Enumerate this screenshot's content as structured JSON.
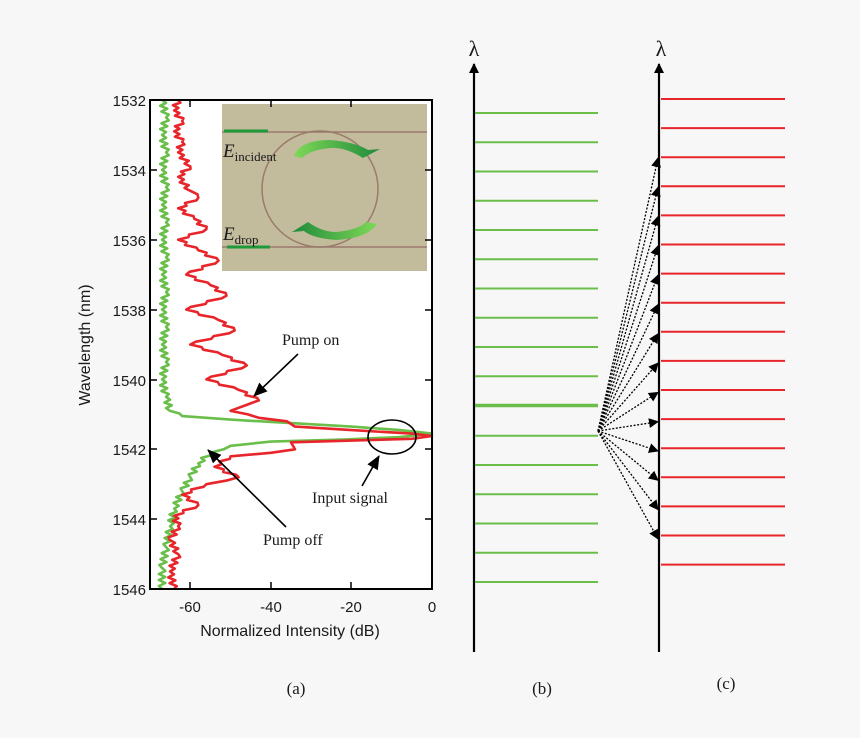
{
  "figure": {
    "background": "#f7f7f7",
    "panel_labels": {
      "a": "(a)",
      "b": "(b)",
      "c": "(c)"
    }
  },
  "panel_a": {
    "xlabel": "Normalized Intensity (dB)",
    "ylabel": "Wavelength (nm)",
    "xticks": [
      "-60",
      "-40",
      "-20",
      "0"
    ],
    "yticks": [
      "1532",
      "1534",
      "1536",
      "1538",
      "1540",
      "1542",
      "1544",
      "1546"
    ],
    "annotations": {
      "pump_on": "Pump on",
      "pump_off": "Pump off",
      "input_signal": "Input signal"
    },
    "inset": {
      "label_incident_main": "E",
      "label_incident_sub": "incident",
      "label_drop_main": "E",
      "label_drop_sub": "drop",
      "background": "#c2bb9c"
    }
  },
  "panel_b": {
    "axis_symbol": "λ",
    "line_color": "#6abf4b"
  },
  "panel_c": {
    "axis_symbol": "λ",
    "line_color": "#e8252a"
  },
  "colors": {
    "pump_off": "#6abf4b",
    "pump_on": "#e8252a",
    "axis": "#000000"
  },
  "chart_data": [
    {
      "type": "line",
      "title": "(a)",
      "xlabel": "Normalized Intensity (dB)",
      "ylabel": "Wavelength (nm)",
      "xlim": [
        -70,
        0
      ],
      "ylim": [
        1546,
        1532
      ],
      "yaxis_inverted": true,
      "xticks": [
        -60,
        -40,
        -20,
        0
      ],
      "yticks": [
        1532,
        1534,
        1536,
        1538,
        1540,
        1542,
        1544,
        1546
      ],
      "grid": false,
      "series": [
        {
          "name": "Pump off",
          "color": "#6abf4b",
          "points": [
            [
              -67,
              1532.0
            ],
            [
              -66,
              1532.5
            ],
            [
              -67,
              1533.0
            ],
            [
              -66,
              1533.5
            ],
            [
              -67,
              1534.0
            ],
            [
              -66,
              1534.5
            ],
            [
              -67,
              1535.0
            ],
            [
              -66,
              1535.5
            ],
            [
              -67,
              1536.0
            ],
            [
              -66,
              1536.5
            ],
            [
              -67,
              1537.0
            ],
            [
              -66,
              1537.5
            ],
            [
              -67,
              1538.0
            ],
            [
              -66,
              1538.5
            ],
            [
              -67,
              1539.0
            ],
            [
              -66,
              1539.5
            ],
            [
              -67,
              1540.0
            ],
            [
              -66,
              1540.5
            ],
            [
              -65,
              1540.9
            ],
            [
              -62,
              1541.05
            ],
            [
              -50,
              1541.15
            ],
            [
              -35,
              1541.25
            ],
            [
              -20,
              1541.35
            ],
            [
              -8,
              1541.45
            ],
            [
              0,
              1541.55
            ],
            [
              -8,
              1541.65
            ],
            [
              -22,
              1541.72
            ],
            [
              -40,
              1541.78
            ],
            [
              -50,
              1541.9
            ],
            [
              -55,
              1542.1
            ],
            [
              -58,
              1542.4
            ],
            [
              -60,
              1542.8
            ],
            [
              -62,
              1543.2
            ],
            [
              -64,
              1543.7
            ],
            [
              -65,
              1544.2
            ],
            [
              -66,
              1544.8
            ],
            [
              -67,
              1545.4
            ],
            [
              -67,
              1546.0
            ]
          ]
        },
        {
          "name": "Pump on",
          "color": "#e8252a",
          "points": [
            [
              -63,
              1532.0
            ],
            [
              -64,
              1532.3
            ],
            [
              -62,
              1532.6
            ],
            [
              -64,
              1532.9
            ],
            [
              -62,
              1533.2
            ],
            [
              -63,
              1533.5
            ],
            [
              -60,
              1533.9
            ],
            [
              -63,
              1534.2
            ],
            [
              -60,
              1534.6
            ],
            [
              -58,
              1534.8
            ],
            [
              -63,
              1535.1
            ],
            [
              -59,
              1535.4
            ],
            [
              -56,
              1535.7
            ],
            [
              -63,
              1536.0
            ],
            [
              -58,
              1536.3
            ],
            [
              -53,
              1536.6
            ],
            [
              -61,
              1537.0
            ],
            [
              -55,
              1537.3
            ],
            [
              -51,
              1537.6
            ],
            [
              -61,
              1538.0
            ],
            [
              -53,
              1538.3
            ],
            [
              -49,
              1538.6
            ],
            [
              -60,
              1539.0
            ],
            [
              -52,
              1539.3
            ],
            [
              -46,
              1539.6
            ],
            [
              -56,
              1540.0
            ],
            [
              -48,
              1540.3
            ],
            [
              -43,
              1540.6
            ],
            [
              -50,
              1540.9
            ],
            [
              -43,
              1541.1
            ],
            [
              -36,
              1541.2
            ],
            [
              -34,
              1541.35
            ],
            [
              -20,
              1541.45
            ],
            [
              -5,
              1541.55
            ],
            [
              0,
              1541.62
            ],
            [
              -5,
              1541.7
            ],
            [
              -20,
              1541.75
            ],
            [
              -35,
              1541.8
            ],
            [
              -34,
              1542.0
            ],
            [
              -40,
              1542.1
            ],
            [
              -50,
              1542.2
            ],
            [
              -54,
              1542.5
            ],
            [
              -48,
              1542.8
            ],
            [
              -56,
              1543.0
            ],
            [
              -62,
              1543.3
            ],
            [
              -58,
              1543.6
            ],
            [
              -64,
              1543.9
            ],
            [
              -63,
              1544.2
            ],
            [
              -65,
              1544.6
            ],
            [
              -63,
              1545.0
            ],
            [
              -65,
              1545.5
            ],
            [
              -64,
              1546.0
            ]
          ]
        }
      ],
      "annotations": [
        {
          "text": "Pump on",
          "target": [
            -44,
            1540.5
          ]
        },
        {
          "text": "Pump off",
          "target": [
            -55,
            1542.0
          ]
        },
        {
          "text": "Input signal",
          "target": [
            -10,
            1541.7
          ]
        }
      ],
      "inset": "Microring resonator schematic with E_incident and E_drop ports"
    },
    {
      "type": "diagram",
      "title": "(b)",
      "axis": "λ",
      "description": "Pump-off spectrum: 17 evenly spaced green lines, with the input signal line (thicker) at the 11th position",
      "green_lines": 17,
      "signal_line_index": 10
    },
    {
      "type": "diagram",
      "title": "(c)",
      "axis": "λ",
      "description": "Pump-on spectrum: 17 evenly spaced red lines; dotted arrows from input signal point fan out to 14 wavelength positions",
      "red_lines": 17,
      "fan_arrows": 14
    }
  ]
}
